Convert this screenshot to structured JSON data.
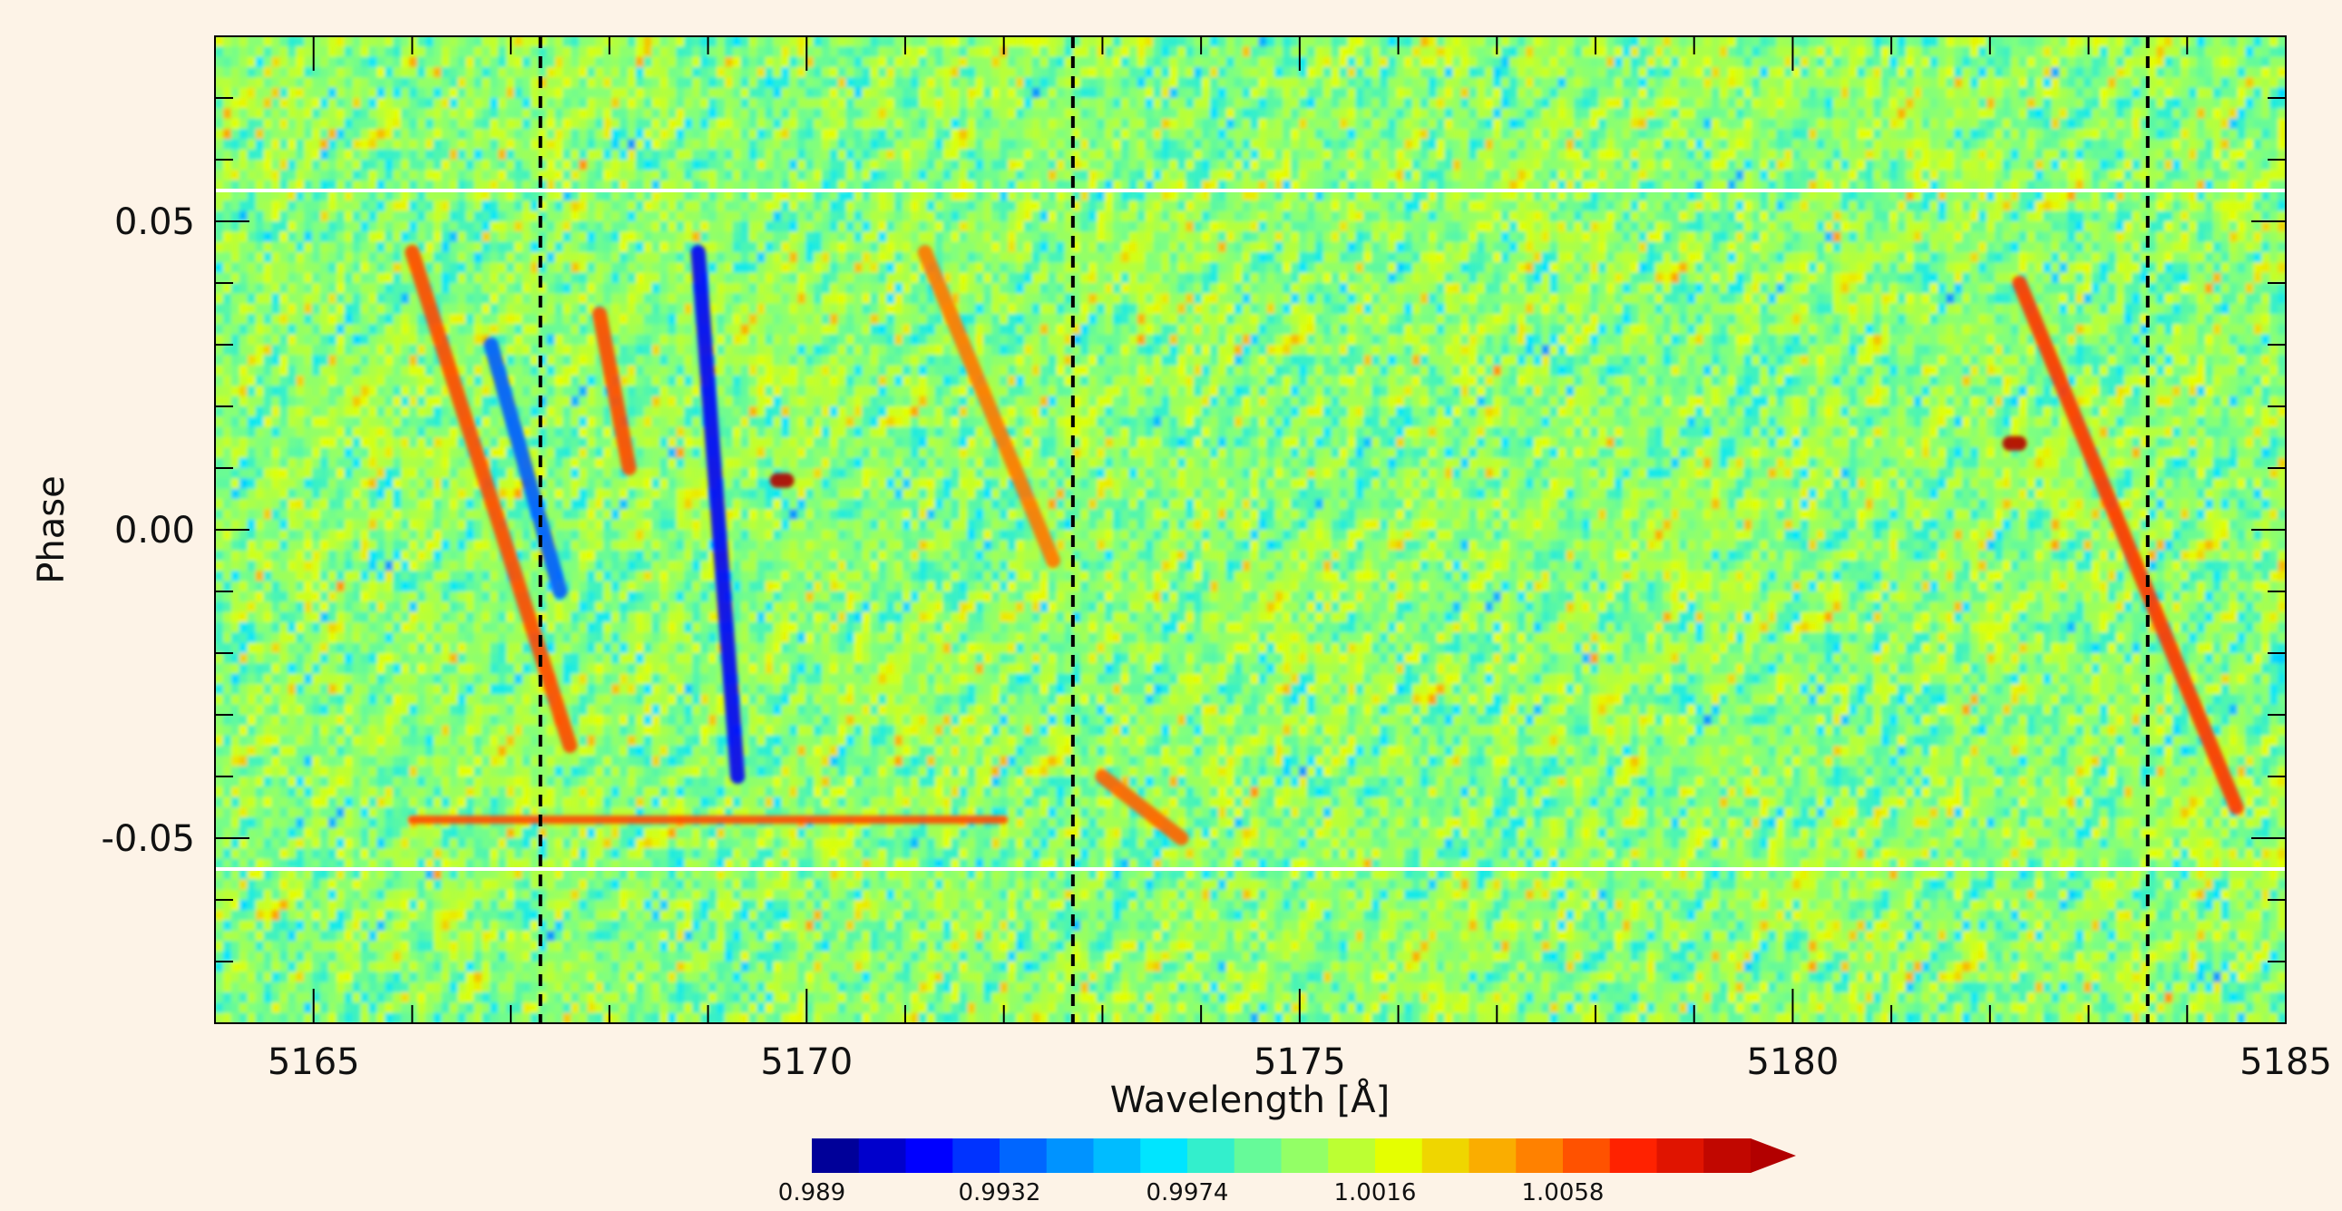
{
  "chart_data": {
    "type": "heatmap",
    "title": "",
    "xlabel": "Wavelength [Å]",
    "ylabel": "Phase",
    "xlim": [
      5164,
      5185
    ],
    "ylim": [
      -0.08,
      0.08
    ],
    "x_ticks": [
      5165,
      5170,
      5175,
      5180,
      5185
    ],
    "y_ticks": [
      -0.05,
      0.0,
      0.05
    ],
    "x_tick_labels": [
      "5165",
      "5170",
      "5175",
      "5180",
      "5185"
    ],
    "y_tick_labels": [
      "-0.05",
      "0.00",
      "0.05"
    ],
    "color_range": [
      0.989,
      1.01
    ],
    "colorbar_tick_values": [
      0.989,
      0.9932,
      0.9974,
      1.0016,
      1.0058
    ],
    "colorbar_tick_labels": [
      "0.989",
      "0.9932",
      "0.9974",
      "1.0016",
      "1.0058"
    ],
    "colorbar_extend": "max",
    "colormap": [
      "#00007f",
      "#0000ff",
      "#007fff",
      "#00e5ff",
      "#7fff7f",
      "#e5ff00",
      "#ff9900",
      "#ff2200",
      "#b20000"
    ],
    "vertical_dashed_lines_x": [
      5167.3,
      5172.7,
      5183.6
    ],
    "horizontal_white_lines_phase": [
      0.055,
      -0.055
    ],
    "features": [
      {
        "label": "Doppler-shifted feature near 5167",
        "x_start": 5166.0,
        "phase_start": 0.045,
        "x_end": 5167.6,
        "phase_end": -0.035,
        "value": 1.0065
      },
      {
        "label": "Doppler-shifted feature near 5172",
        "x_start": 5171.2,
        "phase_start": 0.045,
        "x_end": 5172.5,
        "phase_end": -0.005,
        "value": 1.0055
      },
      {
        "label": "Doppler-shifted feature near 5183",
        "x_start": 5182.3,
        "phase_start": 0.04,
        "x_end": 5184.5,
        "phase_end": -0.045,
        "value": 1.007
      },
      {
        "label": "absorption trail near 5169",
        "x_start": 5168.9,
        "phase_start": 0.045,
        "x_end": 5169.3,
        "phase_end": -0.04,
        "value": 0.9915
      },
      {
        "label": "absorption trail near 5167",
        "x_start": 5166.8,
        "phase_start": 0.03,
        "x_end": 5167.5,
        "phase_end": -0.01,
        "value": 0.9935
      },
      {
        "label": "feature near 5168",
        "x_start": 5167.9,
        "phase_start": 0.035,
        "x_end": 5168.2,
        "phase_end": 0.01,
        "value": 1.0065
      },
      {
        "label": "feature near 5173",
        "x_start": 5173.0,
        "phase_start": -0.04,
        "x_end": 5173.8,
        "phase_end": -0.05,
        "value": 1.006
      },
      {
        "label": "artifact row",
        "x_start": 5166.0,
        "phase_start": -0.047,
        "x_end": 5172.0,
        "phase_end": -0.047,
        "value": 1.0065
      },
      {
        "label": "spot",
        "x_start": 5169.7,
        "phase_start": 0.008,
        "x_end": 5169.8,
        "phase_end": 0.008,
        "value": 1.01
      },
      {
        "label": "spot",
        "x_start": 5182.2,
        "phase_start": 0.014,
        "x_end": 5182.3,
        "phase_end": 0.014,
        "value": 1.01
      }
    ]
  }
}
